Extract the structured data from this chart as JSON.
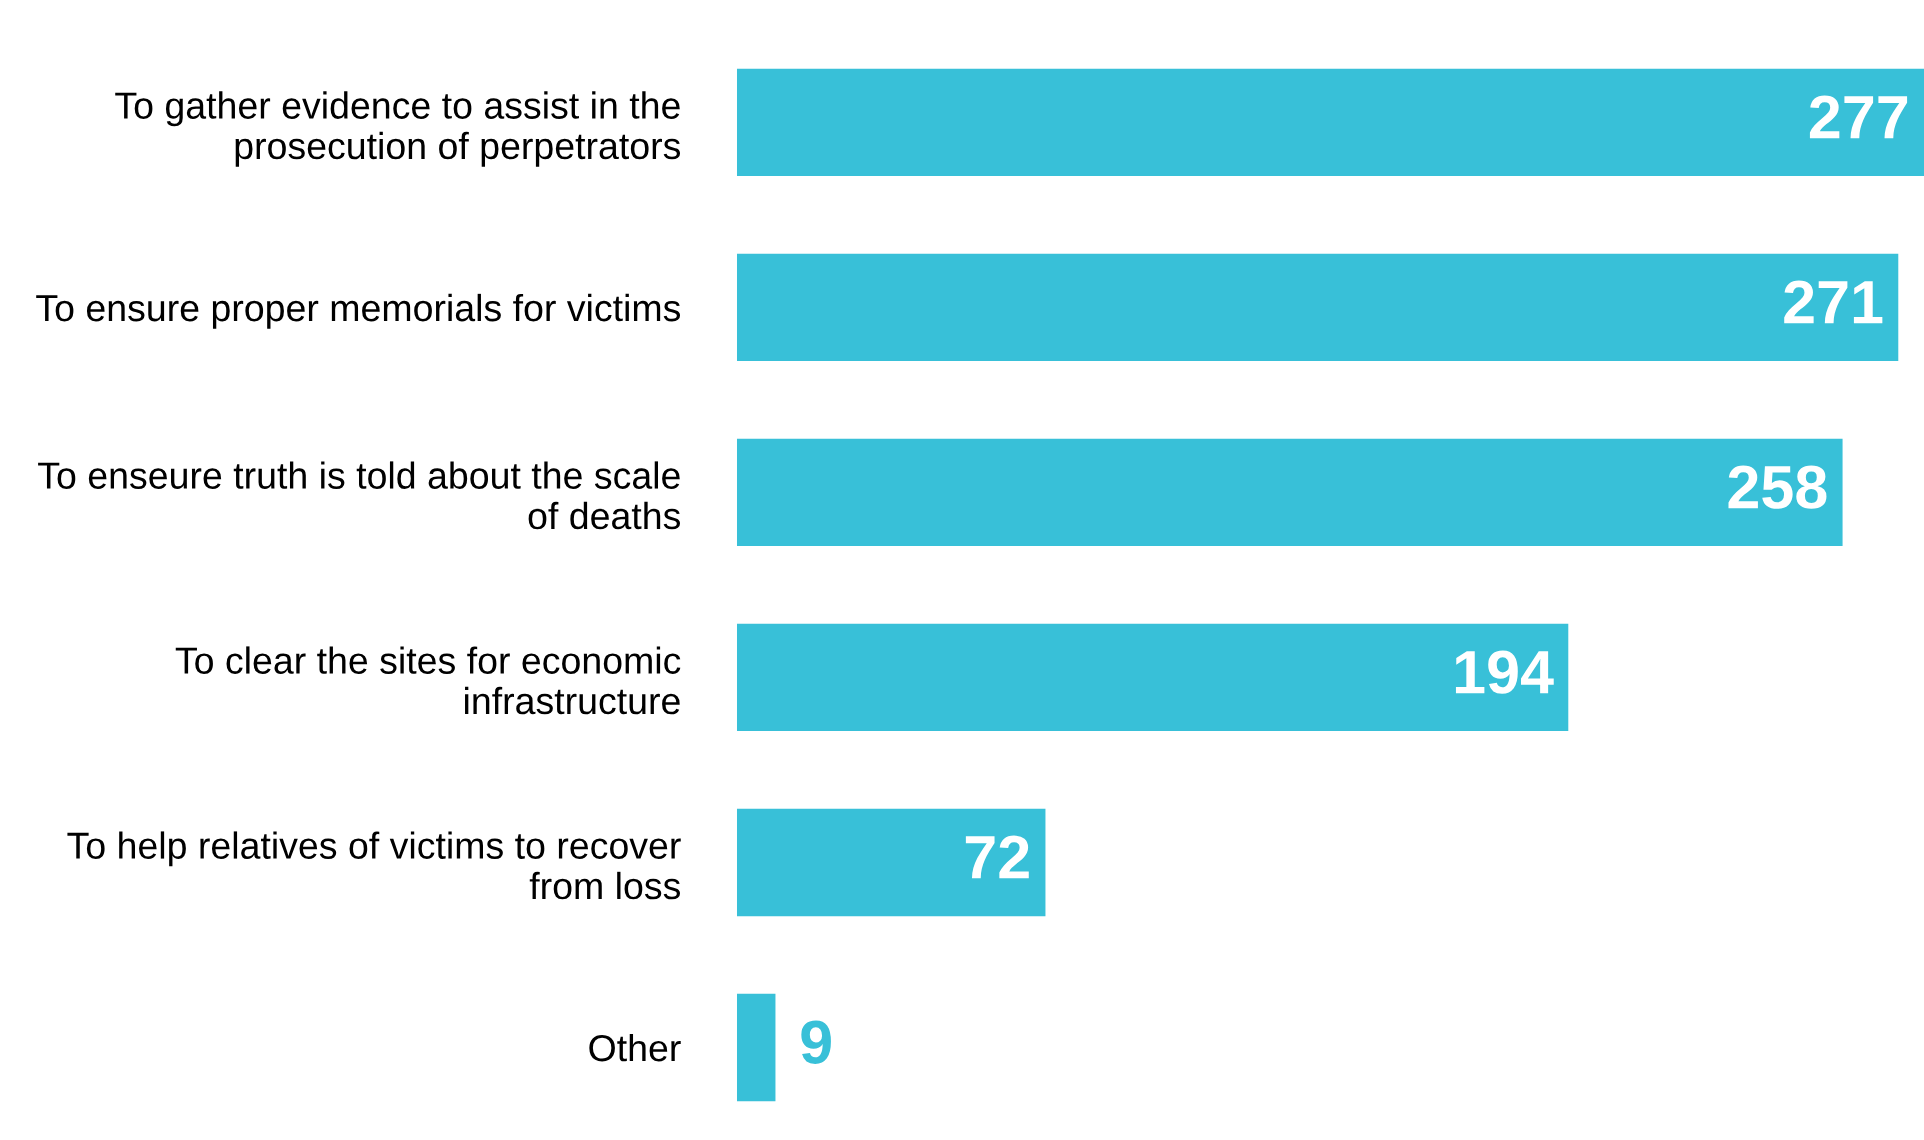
{
  "chart_data": {
    "type": "bar",
    "orientation": "horizontal",
    "categories": [
      "To gather evidence to assist in the\nprosecution of perpetrators",
      "To ensure proper memorials for victims",
      "To enseure truth is told about the scale\nof deaths",
      "To clear the sites for economic\ninfrastructure",
      "To help relatives of victims to recover\nfrom loss",
      "Other"
    ],
    "values": [
      277,
      271,
      258,
      194,
      72,
      9
    ],
    "color": "#38c0d8",
    "data_labels": true
  }
}
